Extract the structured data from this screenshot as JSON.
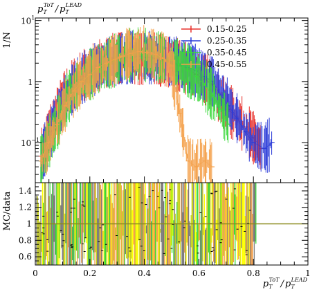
{
  "chart_data": [
    {
      "type": "line",
      "title": "",
      "ylabel": "1/N",
      "xlabel": "",
      "corner_label": {
        "base1": "p",
        "sub1": "T",
        "sup1": "ToT",
        "slash": "/",
        "base2": "p",
        "sub2": "T",
        "sup2": "LEAD"
      },
      "log_y": true,
      "xlim": [
        0,
        1
      ],
      "ylim": [
        0.022,
        11
      ],
      "y_ticks": [
        {
          "v": 0.1,
          "base": "10",
          "exp": "−1"
        },
        {
          "v": 1,
          "base": "1",
          "exp": ""
        },
        {
          "v": 10,
          "base": "10",
          "exp": "1"
        }
      ],
      "legend_position": "top-right",
      "series": [
        {
          "name": "0.15-0.25",
          "color": "#e8302b",
          "x": [
            0.02,
            0.05,
            0.08,
            0.11,
            0.14,
            0.17,
            0.2,
            0.23,
            0.26,
            0.29,
            0.32,
            0.35,
            0.38,
            0.41,
            0.44,
            0.47,
            0.5,
            0.53,
            0.56,
            0.59,
            0.62,
            0.65,
            0.68,
            0.71,
            0.74,
            0.77,
            0.8,
            0.83
          ],
          "y": [
            0.06,
            0.15,
            0.3,
            0.6,
            0.9,
            1.2,
            1.5,
            1.8,
            2.0,
            2.3,
            2.5,
            2.4,
            2.3,
            2.5,
            2.4,
            2.2,
            2.0,
            1.8,
            1.6,
            1.3,
            1.1,
            0.9,
            0.5,
            0.35,
            0.25,
            0.18,
            0.12,
            0.08
          ]
        },
        {
          "name": "0.25-0.35",
          "color": "#2a3bd8",
          "x": [
            0.02,
            0.05,
            0.08,
            0.11,
            0.14,
            0.17,
            0.2,
            0.23,
            0.26,
            0.29,
            0.32,
            0.35,
            0.38,
            0.41,
            0.44,
            0.47,
            0.5,
            0.53,
            0.56,
            0.59,
            0.62,
            0.65,
            0.68,
            0.71,
            0.74,
            0.77,
            0.8,
            0.84,
            0.87
          ],
          "y": [
            0.05,
            0.12,
            0.25,
            0.5,
            0.8,
            1.1,
            1.4,
            1.7,
            2.0,
            2.2,
            2.4,
            2.5,
            2.6,
            2.5,
            2.4,
            2.3,
            2.1,
            1.9,
            1.7,
            1.5,
            1.2,
            1.0,
            0.6,
            0.4,
            0.25,
            0.15,
            0.1,
            0.08,
            0.1
          ]
        },
        {
          "name": "0.35-0.45",
          "color": "#3ad83a",
          "x": [
            0.02,
            0.05,
            0.08,
            0.11,
            0.14,
            0.17,
            0.2,
            0.23,
            0.26,
            0.29,
            0.32,
            0.35,
            0.38,
            0.41,
            0.44,
            0.47,
            0.5,
            0.53,
            0.56,
            0.59,
            0.62,
            0.65,
            0.68,
            0.71
          ],
          "y": [
            0.05,
            0.1,
            0.2,
            0.45,
            0.75,
            1.0,
            1.3,
            1.6,
            1.9,
            2.2,
            2.5,
            2.7,
            2.8,
            2.7,
            2.6,
            2.4,
            2.2,
            1.9,
            1.5,
            1.2,
            0.9,
            0.6,
            0.35,
            0.2
          ]
        },
        {
          "name": "0.45-0.55",
          "color": "#f4a04a",
          "x": [
            0.02,
            0.05,
            0.08,
            0.11,
            0.14,
            0.17,
            0.2,
            0.23,
            0.26,
            0.29,
            0.32,
            0.35,
            0.38,
            0.41,
            0.44,
            0.47,
            0.5,
            0.53,
            0.56,
            0.59,
            0.62,
            0.65
          ],
          "y": [
            0.05,
            0.1,
            0.2,
            0.4,
            0.7,
            1.0,
            1.3,
            1.7,
            2.0,
            2.3,
            2.6,
            2.9,
            3.1,
            3.0,
            2.8,
            2.4,
            1.8,
            0.3,
            0.05,
            0.04,
            0.05,
            0.04
          ]
        }
      ]
    },
    {
      "type": "line",
      "ylabel": "MC/data",
      "xlabel": "",
      "x_label": {
        "base1": "p",
        "sub1": "T",
        "sup1": "ToT",
        "slash": "/",
        "base2": "p",
        "sub2": "T",
        "sup2": "LEAD"
      },
      "xlim": [
        0,
        1
      ],
      "ylim": [
        0.5,
        1.5
      ],
      "x_ticks": [
        {
          "v": 0,
          "label": "0"
        },
        {
          "v": 0.2,
          "label": "0.2"
        },
        {
          "v": 0.4,
          "label": "0.4"
        },
        {
          "v": 0.6,
          "label": "0.6"
        },
        {
          "v": 0.8,
          "label": "0.8"
        },
        {
          "v": 1,
          "label": "1"
        }
      ],
      "y_ticks": [
        {
          "v": 0.6,
          "label": "0.6"
        },
        {
          "v": 0.8,
          "label": "0.8"
        },
        {
          "v": 1,
          "label": "1"
        },
        {
          "v": 1.2,
          "label": "1.2"
        },
        {
          "v": 1.4,
          "label": "1.4"
        }
      ],
      "reference_line": {
        "y": 1,
        "color": "#8a8a1e"
      },
      "band_colors": [
        "#ffff00",
        "#f4a04a",
        "#3ad83a",
        "#c8d020",
        "#7a7a7a"
      ],
      "band_x_max": 0.81
    }
  ]
}
